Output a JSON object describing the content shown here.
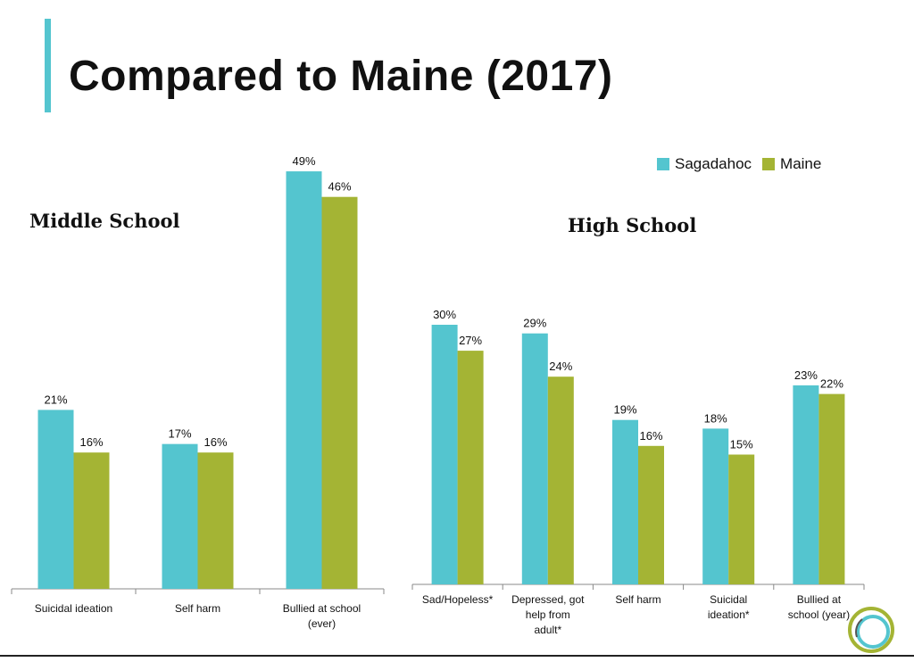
{
  "title": "Compared to Maine (2017)",
  "colors": {
    "sagadahoc": "#54c5cf",
    "maine": "#a4b434",
    "accent": "#54c5cf"
  },
  "legend": [
    {
      "name": "Sagadahoc",
      "color": "#54c5cf"
    },
    {
      "name": "Maine",
      "color": "#a4b434"
    }
  ],
  "chart_data": [
    {
      "type": "bar",
      "title": "Middle School",
      "categories": [
        "Suicidal ideation",
        "Self harm",
        "Bullied at school (ever)"
      ],
      "series": [
        {
          "name": "Sagadahoc",
          "values": [
            21,
            17,
            49
          ],
          "labels": [
            "21%",
            "17%",
            "49%"
          ]
        },
        {
          "name": "Maine",
          "values": [
            16,
            16,
            46
          ],
          "labels": [
            "16%",
            "16%",
            "46%"
          ]
        }
      ],
      "ylim": [
        0,
        50
      ]
    },
    {
      "type": "bar",
      "title": "High School",
      "categories": [
        "Sad/Hopeless*",
        "Depressed, got help from adult*",
        "Self harm",
        "Suicidal ideation*",
        "Bullied at school (year)"
      ],
      "series": [
        {
          "name": "Sagadahoc",
          "values": [
            30,
            29,
            19,
            18,
            23
          ],
          "labels": [
            "30%",
            "29%",
            "19%",
            "18%",
            "23%"
          ]
        },
        {
          "name": "Maine",
          "values": [
            27,
            24,
            16,
            15,
            22
          ],
          "labels": [
            "27%",
            "24%",
            "16%",
            "15%",
            "22%"
          ]
        }
      ],
      "ylim": [
        0,
        50
      ]
    }
  ]
}
